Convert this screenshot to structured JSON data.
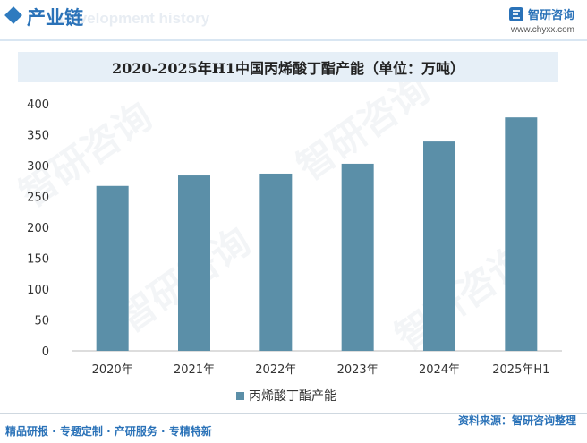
{
  "header": {
    "section_title": "产业链",
    "bg_text": "Development history",
    "brand_name": "智研咨询",
    "brand_url": "www.chyxx.com"
  },
  "watermark_text": "智研咨询",
  "chart_data": {
    "type": "bar",
    "title": "2020-2025年H1中国丙烯酸丁酯产能（单位：万吨）",
    "categories": [
      "2020年",
      "2021年",
      "2022年",
      "2023年",
      "2024年",
      "2025年H1"
    ],
    "series": [
      {
        "name": "丙烯酸丁酯产能",
        "values": [
          267,
          284,
          287,
          303,
          339,
          378
        ],
        "color": "#5b8fa8"
      }
    ],
    "ylim": [
      0,
      400
    ],
    "yticks": [
      0,
      50,
      100,
      150,
      200,
      250,
      300,
      350,
      400
    ],
    "grid": false,
    "legend": "bottom-center"
  },
  "footer": {
    "left": "精品研报 · 专题定制 · 产研服务 · 专精特新",
    "right": "资料来源：智研咨询整理"
  }
}
